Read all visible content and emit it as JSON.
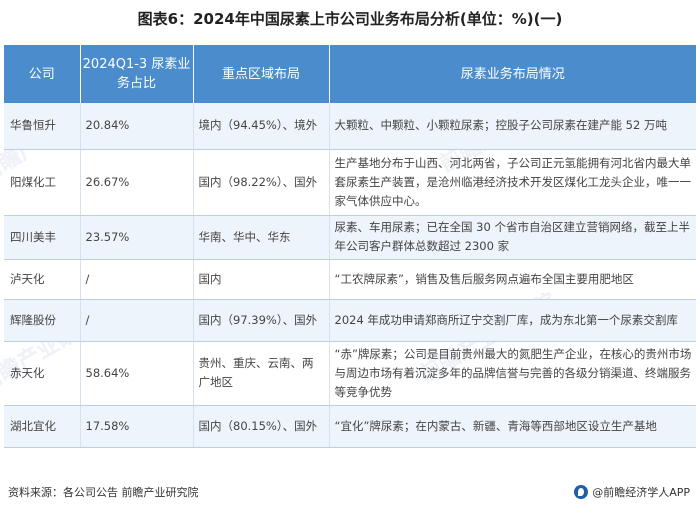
{
  "title": "图表6：2024年中国尿素上市公司业务布局分析(单位：%)(一)",
  "table": {
    "headers": [
      "公司",
      "2024Q1-3 尿素业务占比",
      "重点区域布局",
      "尿素业务布局情况"
    ],
    "rows": [
      [
        "华鲁恒升",
        "20.84%",
        "境内（94.45%）、境外",
        "大颗粒、中颗粒、小颗粒尿素；控股子公司尿素在建产能 52 万吨"
      ],
      [
        "阳煤化工",
        "26.67%",
        "国内（98.22%）、国外",
        "生产基地分布于山西、河北两省，子公司正元氢能拥有河北省内最大单套尿素生产装置，是沧州临港经济技术开发区煤化工龙头企业，唯一一家气体供应中心。"
      ],
      [
        "四川美丰",
        "23.57%",
        "华南、华中、华东",
        "尿素、车用尿素；已在全国 30 个省市自治区建立营销网络，截至上半年公司客户群体总数超过 2300 家"
      ],
      [
        "泸天化",
        "/",
        "国内",
        "“工农牌尿素”，销售及售后服务网点遍布全国主要用肥地区"
      ],
      [
        "辉隆股份",
        "/",
        "国内（97.39%）、国外",
        "2024 年成功申请郑商所辽宁交割厂库，成为东北第一个尿素交割库"
      ],
      [
        "赤天化",
        "58.64%",
        "贵州、重庆、云南、两广地区",
        "“赤”牌尿素；公司是目前贵州最大的氮肥生产企业，在核心的贵州市场与周边市场有着沉淀多年的品牌信誉与完善的各级分销渠道、终端服务等竞争优势"
      ],
      [
        "湖北宜化",
        "17.58%",
        "国内（80.15%）、国外",
        "“宜化”牌尿素；在内蒙古、新疆、青海等西部地区设立生产基地"
      ]
    ]
  },
  "footer": {
    "source": "资料来源：各公司公告 前瞻产业研究院",
    "brand": "@前瞻经济学人APP"
  },
  "colors": {
    "header_bg": "#4a8ccc",
    "stripe_bg": "#eef4fb",
    "brand_icon": "#1f5fa8"
  }
}
